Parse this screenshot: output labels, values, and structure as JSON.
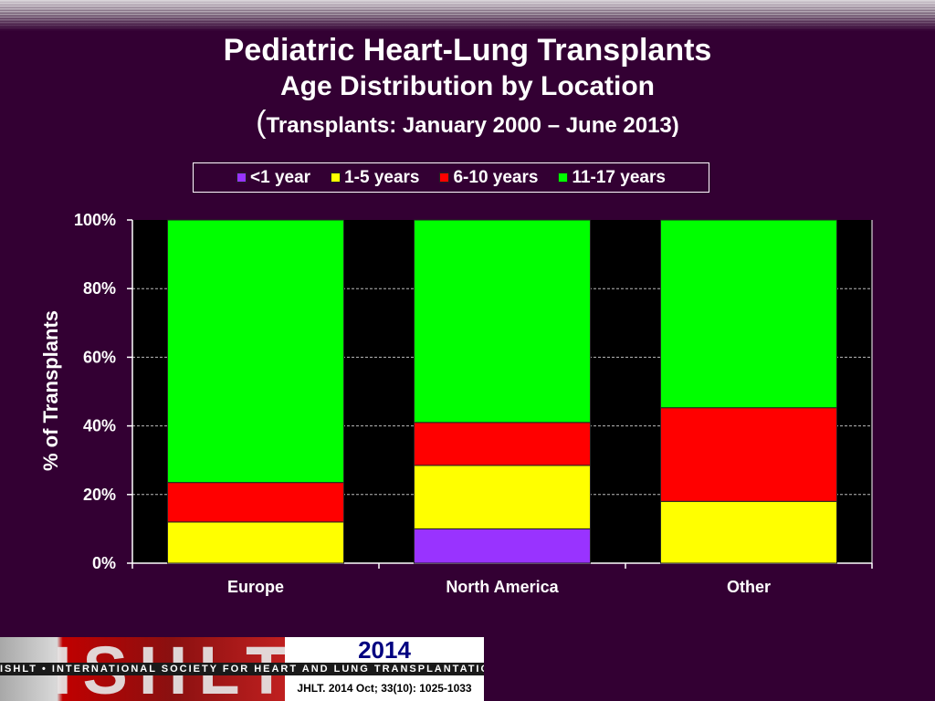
{
  "title": "Pediatric Heart-Lung Transplants",
  "subtitle": "Age Distribution by Location",
  "subtitle2_paren_open": "(",
  "subtitle2_text": "Transplants: January 2000 – June 2013)",
  "chart_data": {
    "type": "bar",
    "stacked": true,
    "percent": true,
    "categories": [
      "Europe",
      "North America",
      "Other"
    ],
    "series": [
      {
        "name": "<1 year",
        "color": "#9933ff",
        "values": [
          0,
          10,
          0
        ]
      },
      {
        "name": "1-5 years",
        "color": "#ffff00",
        "values": [
          12,
          18.5,
          18
        ]
      },
      {
        "name": "6-10 years",
        "color": "#ff0000",
        "values": [
          11.5,
          12.5,
          27.3
        ]
      },
      {
        "name": "11-17 years",
        "color": "#00ff00",
        "values": [
          76.5,
          59,
          54.7
        ]
      }
    ],
    "ylabel": "% of Transplants",
    "ylim": [
      0,
      100
    ],
    "yticks": [
      "0%",
      "20%",
      "40%",
      "60%",
      "80%",
      "100%"
    ],
    "grid": true,
    "legend_position": "top",
    "plot_background": "#000000"
  },
  "footer": {
    "logo_text": "ISHLT",
    "org_text": "ISHLT • INTERNATIONAL SOCIETY FOR HEART AND LUNG TRANSPLANTATION",
    "year": "2014",
    "citation": "JHLT. 2014 Oct; 33(10): 1025-1033"
  }
}
